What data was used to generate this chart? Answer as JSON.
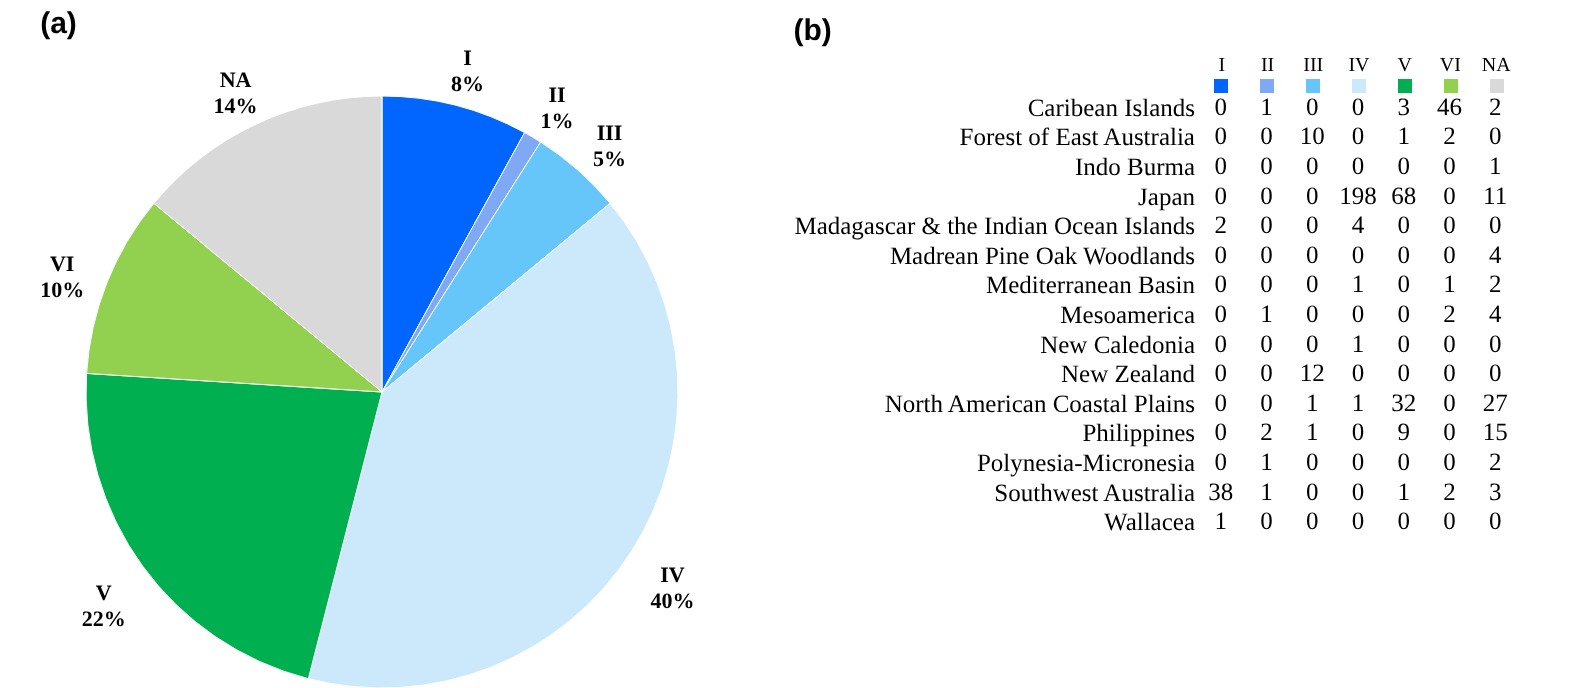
{
  "chart_data": [
    {
      "type": "pie",
      "title": "(a)",
      "categories": [
        "I",
        "II",
        "III",
        "IV",
        "V",
        "VI",
        "NA"
      ],
      "values": [
        8,
        1,
        5,
        40,
        22,
        10,
        14
      ],
      "value_labels": [
        "8%",
        "1%",
        "5%",
        "40%",
        "22%",
        "10%",
        "14%"
      ],
      "colors": [
        "#0066ff",
        "#7fa8f5",
        "#66c6fa",
        "#cbe9fb",
        "#00b050",
        "#92d050",
        "#d9d9d9"
      ]
    },
    {
      "type": "heatmap",
      "title": "(b)",
      "categories": [
        "I",
        "II",
        "III",
        "IV",
        "V",
        "VI",
        "NA"
      ],
      "colors": [
        "#0066ff",
        "#7fa8f5",
        "#66c6fa",
        "#cbe9fb",
        "#00b050",
        "#92d050",
        "#d9d9d9"
      ],
      "data_labels": true,
      "y_categories": [
        "Caribean Islands",
        "Forest of East Australia",
        "Indo Burma",
        "Japan",
        "Madagascar & the Indian Ocean Islands",
        "Madrean Pine Oak Woodlands",
        "Mediterranean Basin",
        "Mesoamerica",
        "New Caledonia",
        "New Zealand",
        "North American Coastal Plains",
        "Philippines",
        "Polynesia-Micronesia",
        "Southwest Australia",
        "Wallacea"
      ],
      "cells": [
        [
          0,
          1,
          0,
          0,
          3,
          46,
          2
        ],
        [
          0,
          0,
          10,
          0,
          1,
          2,
          0
        ],
        [
          0,
          0,
          0,
          0,
          0,
          0,
          1
        ],
        [
          0,
          0,
          0,
          198,
          68,
          0,
          11
        ],
        [
          2,
          0,
          0,
          4,
          0,
          0,
          0
        ],
        [
          0,
          0,
          0,
          0,
          0,
          0,
          4
        ],
        [
          0,
          0,
          0,
          1,
          0,
          1,
          2
        ],
        [
          0,
          1,
          0,
          0,
          0,
          2,
          4
        ],
        [
          0,
          0,
          0,
          1,
          0,
          0,
          0
        ],
        [
          0,
          0,
          12,
          0,
          0,
          0,
          0
        ],
        [
          0,
          0,
          1,
          1,
          32,
          0,
          27
        ],
        [
          0,
          2,
          1,
          0,
          9,
          0,
          15
        ],
        [
          0,
          1,
          0,
          0,
          0,
          0,
          2
        ],
        [
          38,
          1,
          0,
          0,
          1,
          2,
          3
        ],
        [
          1,
          0,
          0,
          0,
          0,
          0,
          0
        ]
      ]
    }
  ]
}
